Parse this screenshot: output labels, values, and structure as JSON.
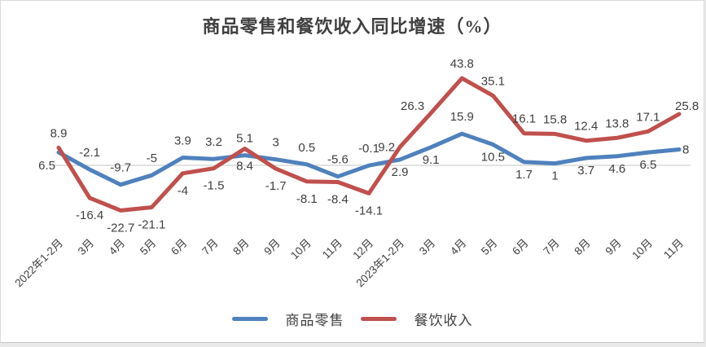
{
  "chart_data": {
    "type": "line",
    "title": "商品零售和餐饮收入同比增速（%）",
    "categories": [
      "2022年1-2月",
      "3月",
      "4月",
      "5月",
      "6月",
      "7月",
      "8月",
      "9月",
      "10月",
      "11月",
      "12月",
      "2023年1-2月",
      "3月",
      "4月",
      "5月",
      "6月",
      "7月",
      "8月",
      "9月",
      "10月",
      "11月"
    ],
    "series": [
      {
        "name": "商品零售",
        "color": "#4F81BD",
        "values": [
          6.5,
          -2.1,
          -9.7,
          -5,
          3.9,
          3.2,
          5.1,
          3,
          0.5,
          -5.6,
          -0.1,
          2.9,
          9.1,
          15.9,
          10.5,
          1.7,
          1,
          3.7,
          4.6,
          6.5,
          8
        ],
        "label_pos": [
          "left-low",
          "above",
          "above",
          "above",
          "above",
          "above",
          "above",
          "above",
          "above",
          "above",
          "above",
          "below",
          "below",
          "above",
          "below",
          "below",
          "below",
          "below",
          "below",
          "below",
          "right"
        ]
      },
      {
        "name": "餐饮收入",
        "color": "#C0504D",
        "values": [
          8.9,
          -16.4,
          -22.7,
          -21.1,
          -4,
          -1.5,
          8.4,
          -1.7,
          -8.1,
          -8.4,
          -14.1,
          9.2,
          26.3,
          43.8,
          35.1,
          16.1,
          15.8,
          12.4,
          13.8,
          17.1,
          25.8
        ],
        "label_pos": [
          "above",
          "below",
          "below",
          "below",
          "below",
          "below",
          "below",
          "below",
          "below",
          "below",
          "below",
          "left",
          "above-left",
          "above",
          "above",
          "above",
          "above",
          "above",
          "above",
          "above",
          "above-right"
        ]
      }
    ],
    "ylabel": "",
    "xlabel": "",
    "ylim": [
      -30,
      50
    ],
    "grid": "zero-axis-only",
    "legend_position": "bottom",
    "axis_color": "#D9D9D9",
    "label_color": "#404040"
  }
}
